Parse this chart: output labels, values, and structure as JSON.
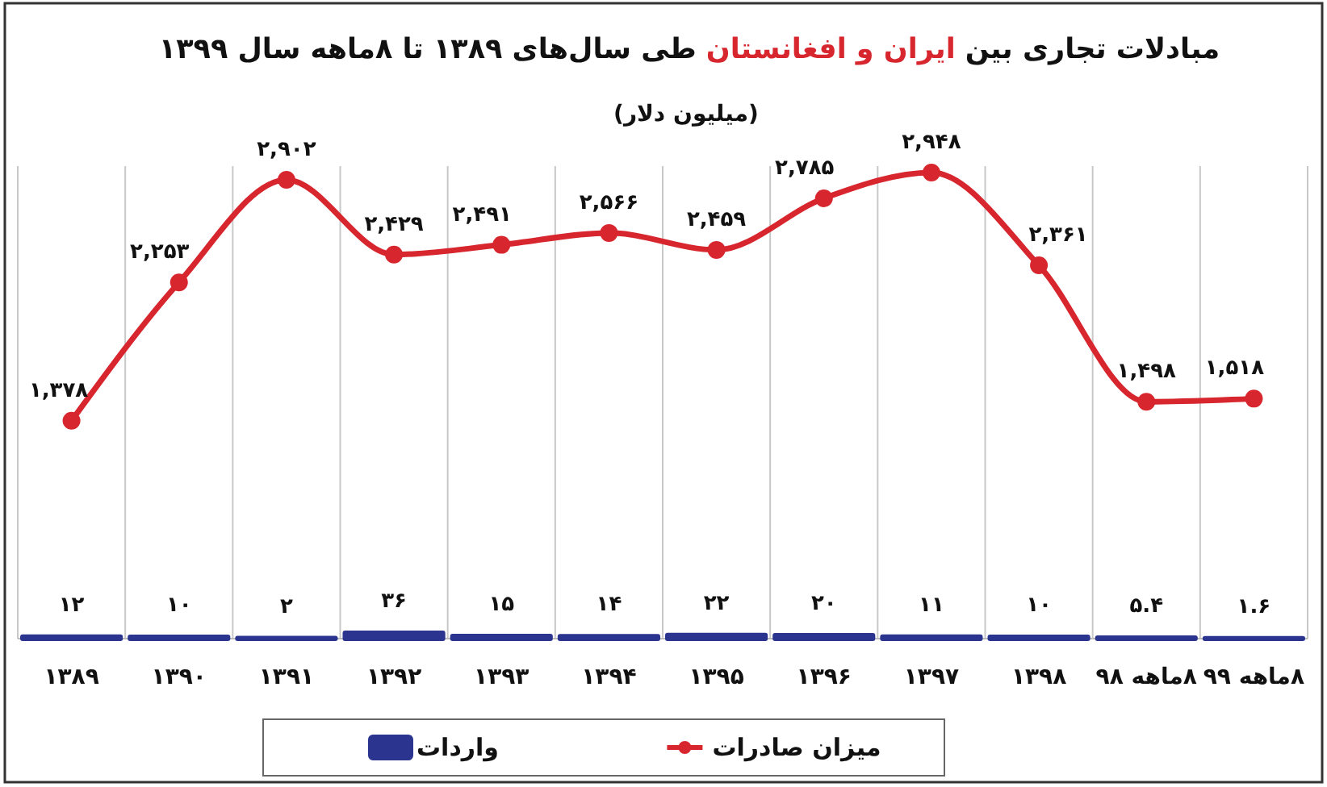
{
  "chart_data": {
    "type": "line",
    "title": "مبادلات تجاری بین ایران و افغانستان طی سال‌های ۱۳۸۹ تا ۸ماهه سال ۱۳۹۹",
    "subtitle": "(میلیون دلار)",
    "categories": [
      "۱۳۸۹",
      "۱۳۹۰",
      "۱۳۹۱",
      "۱۳۹۲",
      "۱۳۹۳",
      "۱۳۹۴",
      "۱۳۹۵",
      "۱۳۹۶",
      "۱۳۹۷",
      "۱۳۹۸",
      "۸ماهه ۹۸",
      "۸ماهه ۹۹"
    ],
    "series": [
      {
        "name": "میزان صادرات",
        "color": "#d7262e",
        "values": [
          1378,
          2253,
          2902,
          2429,
          2491,
          2566,
          2459,
          2785,
          2948,
          2361,
          1498,
          1518
        ],
        "value_labels": [
          "۱,۳۷۸",
          "۲,۲۵۳",
          "۲,۹۰۲",
          "۲,۴۲۹",
          "۲,۴۹۱",
          "۲,۵۶۶",
          "۲,۴۵۹",
          "۲,۷۸۵",
          "۲,۹۴۸",
          "۲,۳۶۱",
          "۱,۴۹۸",
          "۱,۵۱۸"
        ]
      },
      {
        "name": "واردات",
        "type": "bar",
        "color": "#2b3590",
        "values": [
          12,
          10,
          2,
          36,
          15,
          14,
          22,
          20,
          11,
          10,
          5.4,
          1.6
        ],
        "value_labels": [
          "۱۲",
          "۱۰",
          "۲",
          "۳۶",
          "۱۵",
          "۱۴",
          "۲۲",
          "۲۰",
          "۱۱",
          "۱۰",
          "۵.۴",
          "۱.۶"
        ]
      }
    ],
    "grid": "x",
    "legend": "bottom",
    "marker": "circle",
    "line_style": "solid"
  }
}
